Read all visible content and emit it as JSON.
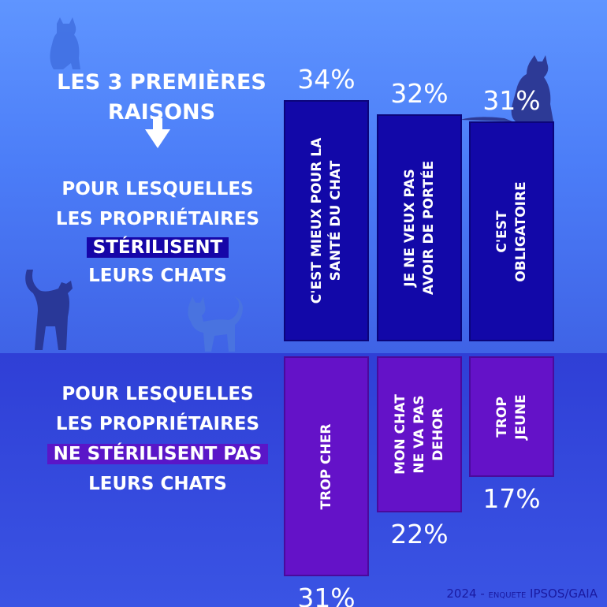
{
  "title_line1": "LES 3 PREMIÈRES",
  "title_line2": "RAISONS",
  "top_block": {
    "line1": "POUR LESQUELLES",
    "line2": "LES PROPRIÉTAIRES",
    "highlight": "STÉRILISENT",
    "line4": "LEURS CHATS"
  },
  "bottom_block": {
    "line1": "POUR LESQUELLES",
    "line2": "LES PROPRIÉTAIRES",
    "highlight": "NE STÉRILISENT PAS",
    "line4": "LEURS CHATS"
  },
  "source": {
    "year": "2024",
    "dash": "-",
    "small": "ENQUETE",
    "org": "IPSOS/GAIA"
  },
  "colors": {
    "top_bar": "#1208a8",
    "bottom_bar": "#6412c8",
    "highlight_dark": "#1606a8",
    "highlight_purple": "#5a16c8"
  },
  "chart_data": [
    {
      "type": "bar",
      "orientation": "vertical-up",
      "categories": [
        [
          "C'EST MIEUX POUR LA",
          "SANTÉ DU CHAT"
        ],
        [
          "JE NE VEUX PAS",
          "AVOIR DE PORTÉE"
        ],
        [
          "C'EST",
          "OBLIGATOIRE"
        ]
      ],
      "values": [
        34,
        32,
        31
      ],
      "labels": [
        "34%",
        "32%",
        "31%"
      ],
      "unit": "%"
    },
    {
      "type": "bar",
      "orientation": "vertical-down",
      "categories": [
        [
          "TROP CHER"
        ],
        [
          "MON CHAT",
          "NE VA PAS",
          "DEHOR"
        ],
        [
          "TROP",
          "JEUNE"
        ]
      ],
      "values": [
        31,
        22,
        17
      ],
      "labels": [
        "31%",
        "22%",
        "17%"
      ],
      "unit": "%"
    }
  ]
}
